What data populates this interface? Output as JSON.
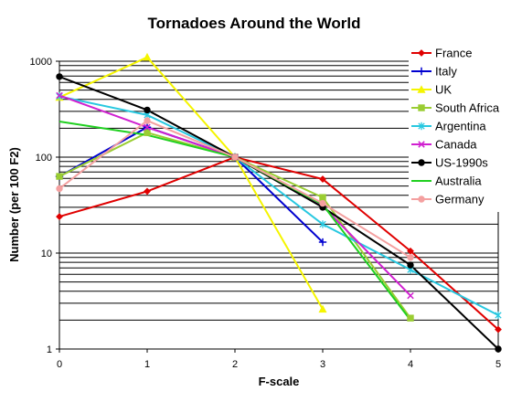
{
  "chart_data": {
    "type": "line",
    "title": "Tornadoes Around the World",
    "xlabel": "F-scale",
    "ylabel": "Number (per 100 F2)",
    "x_ticks": [
      "0",
      "1",
      "2",
      "3",
      "4",
      "5"
    ],
    "y_ticks": [
      "1",
      "10",
      "100",
      "1000"
    ],
    "xlim": [
      0,
      5
    ],
    "ylim": [
      1,
      1000
    ],
    "y_scale": "log",
    "grid": "horizontal",
    "legend_position": "right",
    "series": [
      {
        "name": "France",
        "color": "#e00000",
        "marker": "diamond",
        "x": [
          0,
          1,
          2,
          3,
          4,
          5
        ],
        "y": [
          24,
          44,
          100,
          59,
          10.5,
          1.6
        ]
      },
      {
        "name": "Italy",
        "color": "#0000d0",
        "marker": "plus",
        "x": [
          0,
          1,
          2,
          3
        ],
        "y": [
          63,
          205,
          100,
          13
        ]
      },
      {
        "name": "UK",
        "color": "#f5f500",
        "marker": "triangle",
        "x": [
          0,
          1,
          2,
          3
        ],
        "y": [
          420,
          1100,
          100,
          2.6
        ]
      },
      {
        "name": "South Africa",
        "color": "#9acd32",
        "marker": "square",
        "x": [
          0,
          1,
          2,
          3,
          4
        ],
        "y": [
          63,
          180,
          100,
          38,
          2.1
        ]
      },
      {
        "name": "Argentina",
        "color": "#28c8e0",
        "marker": "asterisk",
        "x": [
          0,
          1,
          2,
          3,
          4,
          5
        ],
        "y": [
          430,
          275,
          100,
          20,
          6.7,
          2.25
        ]
      },
      {
        "name": "Canada",
        "color": "#d020d0",
        "marker": "x",
        "x": [
          0,
          1,
          2,
          3,
          4
        ],
        "y": [
          440,
          205,
          100,
          31,
          3.6
        ]
      },
      {
        "name": "US-1990s",
        "color": "#000000",
        "marker": "circle",
        "x": [
          0,
          1,
          2,
          3,
          4,
          5
        ],
        "y": [
          690,
          310,
          100,
          30,
          7.5,
          1
        ]
      },
      {
        "name": "Australia",
        "color": "#20d020",
        "marker": "none",
        "x": [
          0,
          1,
          2,
          3,
          4
        ],
        "y": [
          235,
          170,
          100,
          32,
          2
        ]
      },
      {
        "name": "Germany",
        "color": "#f4a0a0",
        "marker": "circle",
        "x": [
          0,
          1,
          2,
          3,
          4
        ],
        "y": [
          47,
          240,
          100,
          33,
          9
        ]
      }
    ]
  }
}
